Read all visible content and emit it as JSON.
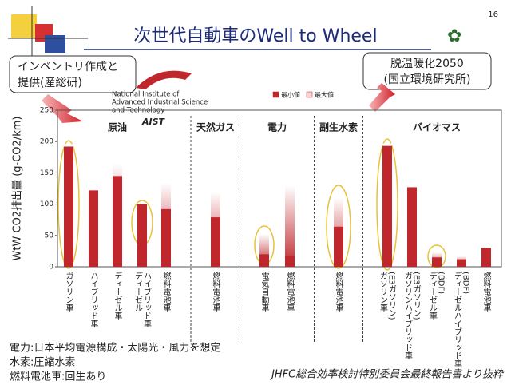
{
  "page_number": "16",
  "callouts": {
    "left": [
      "インベントリ作成と",
      "提供(産総研)"
    ],
    "right": [
      "脱温暖化2050",
      "(国立環境研究所)"
    ]
  },
  "logo": {
    "lines": [
      "National Institute of",
      "Advanced Industrial Science",
      "and Technology"
    ],
    "mark": "AIST"
  },
  "chart_data": {
    "type": "range_bar",
    "title": "次世代自動車のWell to Wheel",
    "y_label": "WtW CO2排出量 (g-CO2/km)",
    "groups": [
      {
        "name": "原油",
        "count": 5
      },
      {
        "name": "天然ガス",
        "count": 1
      },
      {
        "name": "電力",
        "count": 2
      },
      {
        "name": "副生水素",
        "count": 1
      },
      {
        "name": "バイオマス",
        "count": 5
      }
    ],
    "categories": [
      [
        "ガソリン車"
      ],
      [
        "ハイブリッド車"
      ],
      [
        "ディーゼル車"
      ],
      [
        "ディーゼル",
        "ハイブリッド車"
      ],
      [
        "燃料電池車"
      ],
      [
        "燃料電池車"
      ],
      [
        "電気自動車"
      ],
      [
        "燃料電池車"
      ],
      [
        "燃料電池車"
      ],
      [
        "ガソリン車",
        "(E3ガソリン)"
      ],
      [
        "ガソリンハイブリッド車",
        "(E3ガソリン)"
      ],
      [
        "ディーゼル車",
        "(BDF)"
      ],
      [
        "ディーゼルハイブリッド車",
        "(BDF)"
      ],
      [
        "燃料電池車"
      ]
    ],
    "series": [
      {
        "name": "最小値",
        "color": "#c0272d",
        "values": [
          192,
          122,
          145,
          100,
          92,
          79,
          20,
          18,
          64,
          193,
          127,
          15,
          12,
          30
        ]
      },
      {
        "name": "最大値",
        "color": "#f6d6d6",
        "values": [
          196,
          122,
          165,
          102,
          134,
          119,
          52,
          130,
          110,
          197,
          129,
          23,
          17,
          32
        ]
      }
    ],
    "ylim": [
      0,
      250
    ],
    "yticks": [
      0,
      50,
      100,
      150,
      200,
      250
    ],
    "grid": false
  },
  "notes": [
    "電力:日本平均電源構成・太陽光・風力を想定",
    "水素:圧縮水素",
    "燃料電池車:回生あり"
  ],
  "source": "JHFC総合効率検討特別委員会最終報告書より抜粋"
}
